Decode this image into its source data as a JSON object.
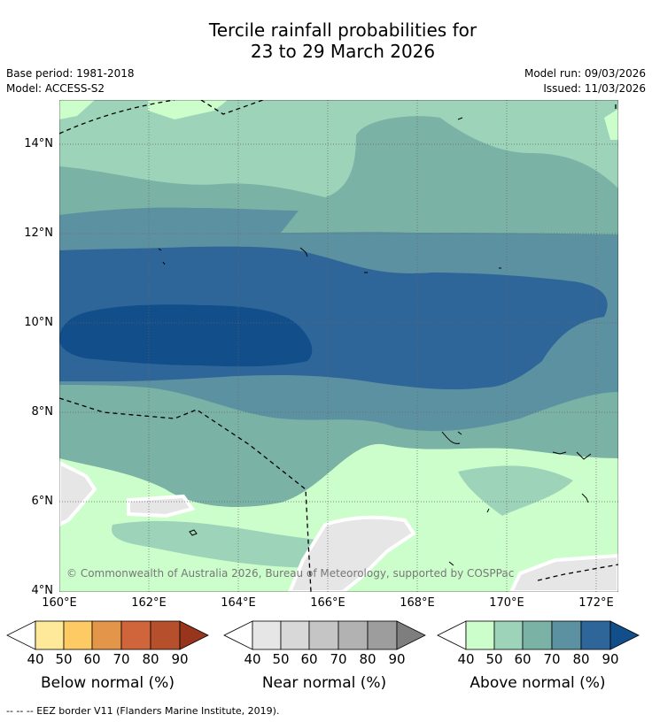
{
  "title": {
    "line1": "Tercile rainfall probabilities for",
    "line2": "23 to 29 March 2026"
  },
  "meta": {
    "base_period": "Base period: 1981-2018",
    "model": "Model: ACCESS-S2",
    "model_run": "Model run: 09/03/2026",
    "issued": "Issued: 11/03/2026"
  },
  "map": {
    "y_ticks": [
      "14°N",
      "12°N",
      "10°N",
      "8°N",
      "6°N",
      "4°N"
    ],
    "x_ticks": [
      "160°E",
      "162°E",
      "164°E",
      "166°E",
      "168°E",
      "170°E",
      "172°E"
    ],
    "copyright": "© Commonwealth of Australia 2026, Bureau of Meteorology, supported by COSPPac"
  },
  "colorbars": [
    {
      "label": "Below normal (%)",
      "ticks": [
        "40",
        "50",
        "60",
        "70",
        "80",
        "90"
      ],
      "colors": [
        "#ffffff",
        "#fee99a",
        "#fdca63",
        "#e3964a",
        "#d0643a",
        "#b64f2c",
        "#97361d"
      ]
    },
    {
      "label": "Near normal (%)",
      "ticks": [
        "40",
        "50",
        "60",
        "70",
        "80",
        "90"
      ],
      "colors": [
        "#ffffff",
        "#e6e6e6",
        "#d8d8d8",
        "#c5c5c5",
        "#b2b2b2",
        "#9d9d9d",
        "#7e7e7e"
      ]
    },
    {
      "label": "Above normal (%)",
      "ticks": [
        "40",
        "50",
        "60",
        "70",
        "80",
        "90"
      ],
      "colors": [
        "#ffffff",
        "#ccfecb",
        "#9dd3b8",
        "#7ab2a6",
        "#5c91a2",
        "#2f6699",
        "#114e8a"
      ]
    }
  ],
  "footnote": "--  --  -- EEZ border V11 (Flanders Marine Institute, 2019)."
}
